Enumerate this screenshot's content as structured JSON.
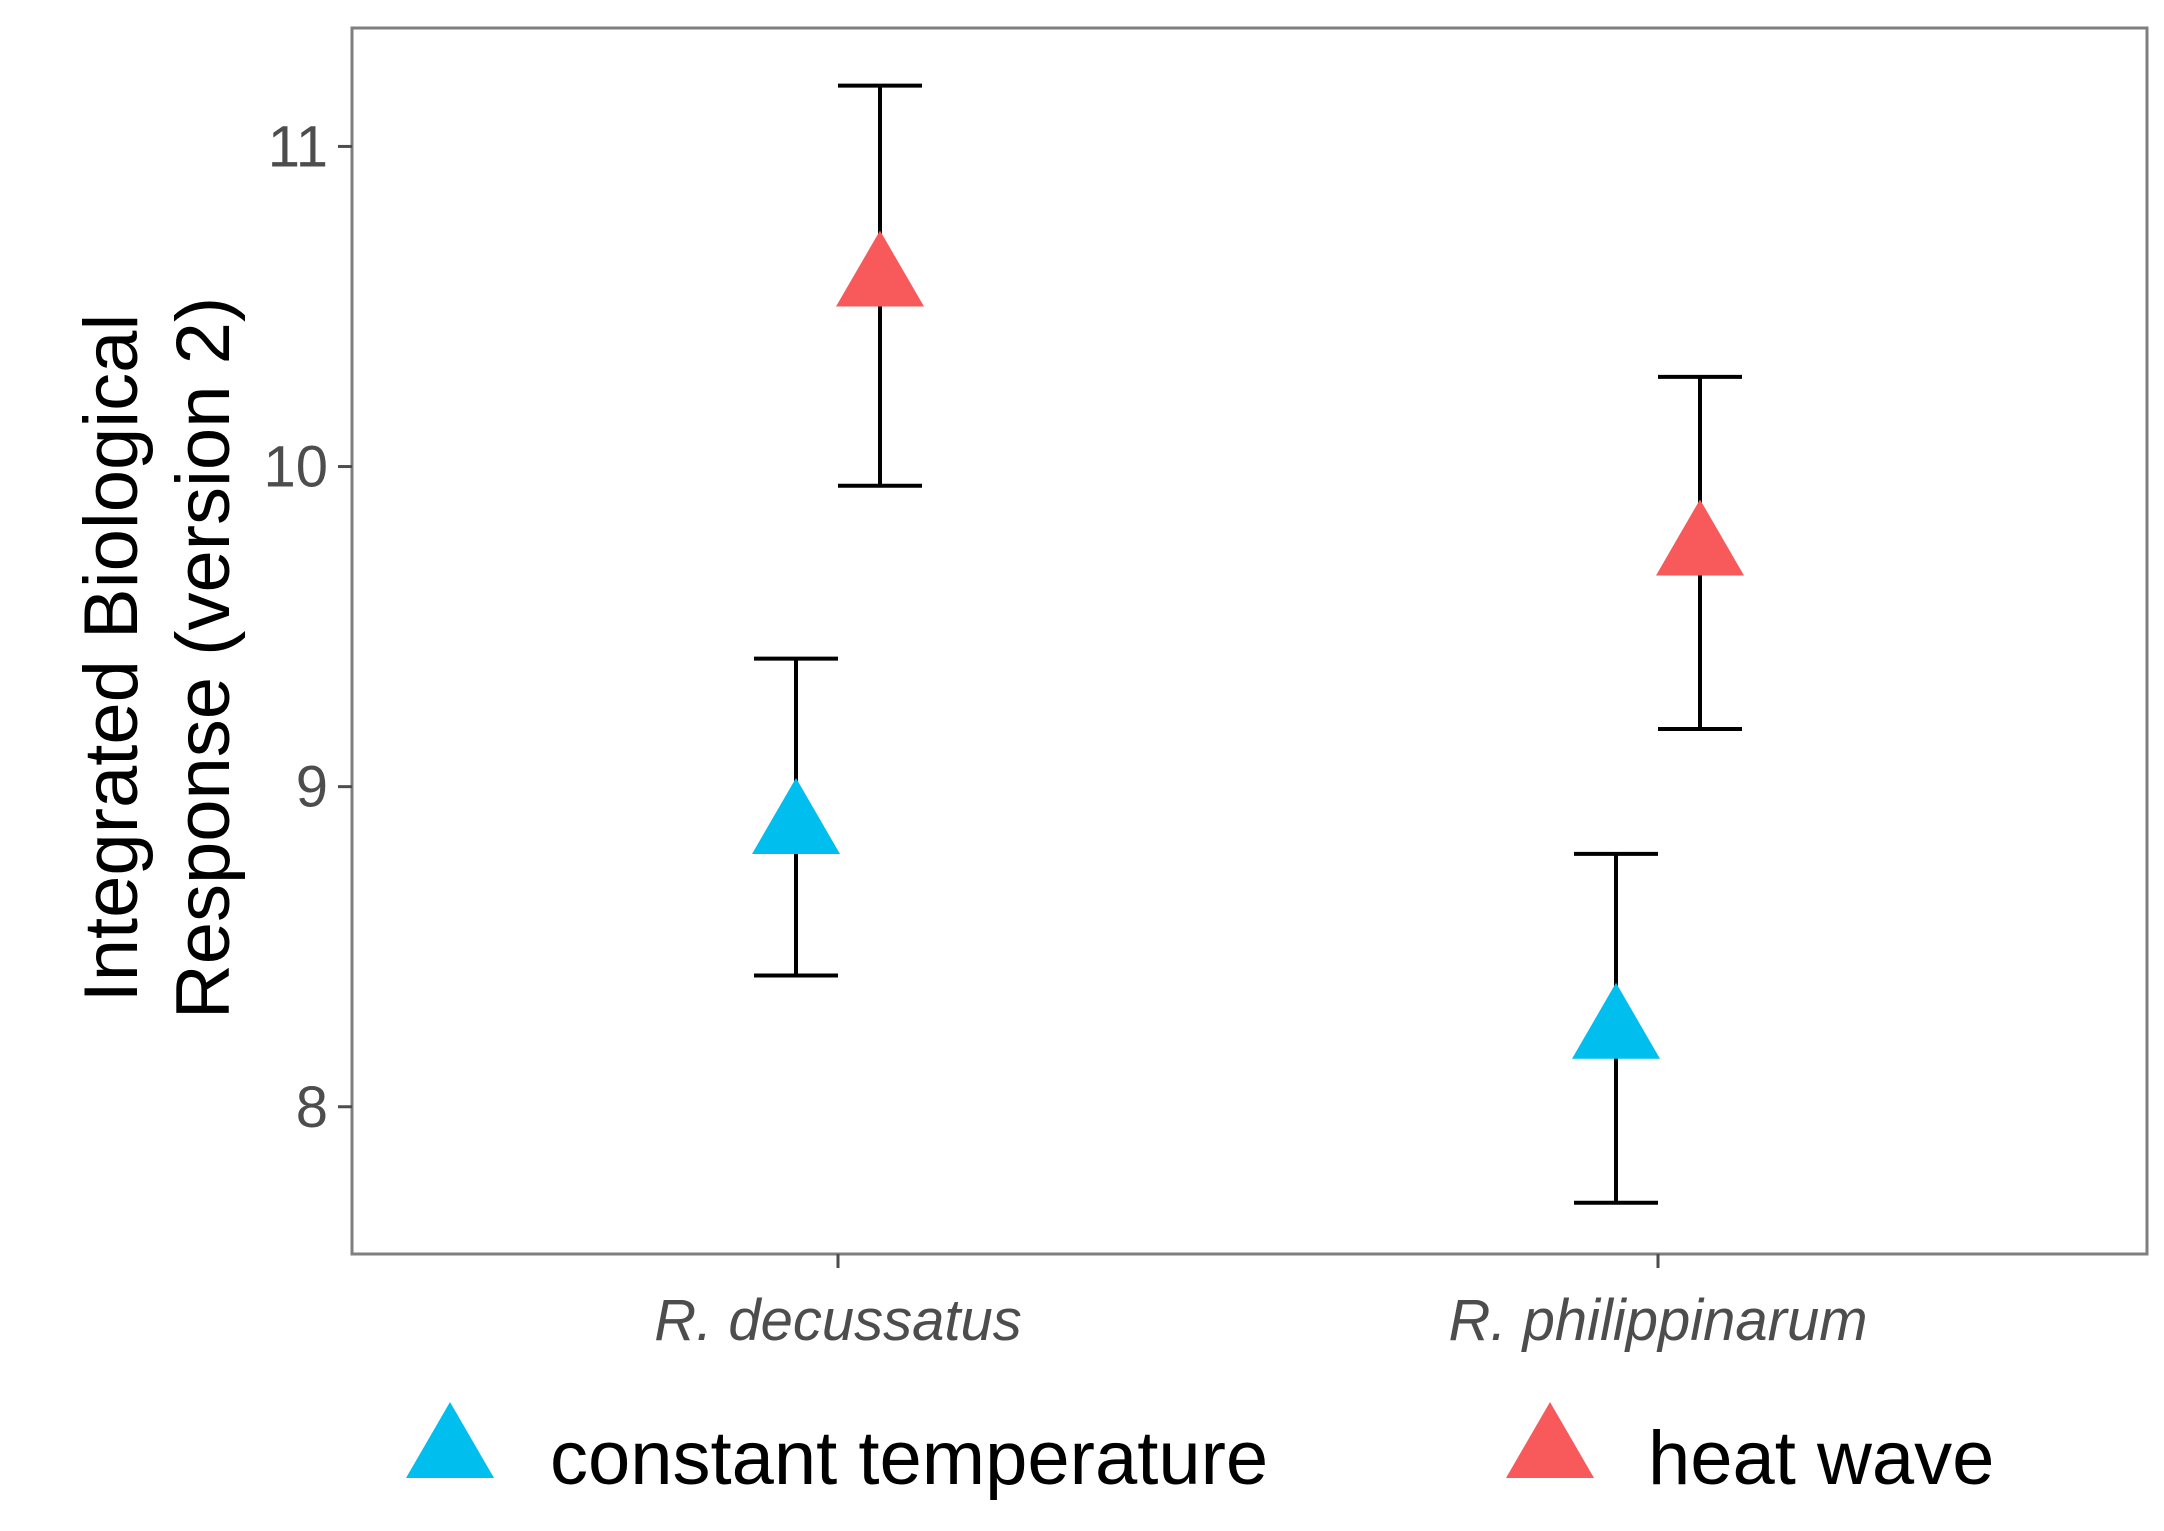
{
  "chart_data": {
    "type": "scatter",
    "title": "",
    "xlabel": "",
    "ylabel_lines": [
      "Integrated Biological",
      "Response (version 2)"
    ],
    "ylim": [
      7.54,
      11.37
    ],
    "yticks": [
      "8",
      "9",
      "10",
      "11"
    ],
    "ytick_values": [
      8,
      9,
      10,
      11
    ],
    "categories": [
      "R. decussatus",
      "R. philippinarum"
    ],
    "grid": false,
    "legend_position": "bottom",
    "series": [
      {
        "name": "constant temperature",
        "color": "#00BFEF",
        "marker": "triangle",
        "values": [
          8.88,
          8.24
        ],
        "error_low": [
          8.41,
          7.7
        ],
        "error_high": [
          9.4,
          8.79
        ]
      },
      {
        "name": "heat wave",
        "color": "#F8595A",
        "marker": "triangle",
        "values": [
          10.59,
          9.75
        ],
        "error_low": [
          9.94,
          9.18
        ],
        "error_high": [
          11.19,
          10.28
        ]
      }
    ]
  }
}
